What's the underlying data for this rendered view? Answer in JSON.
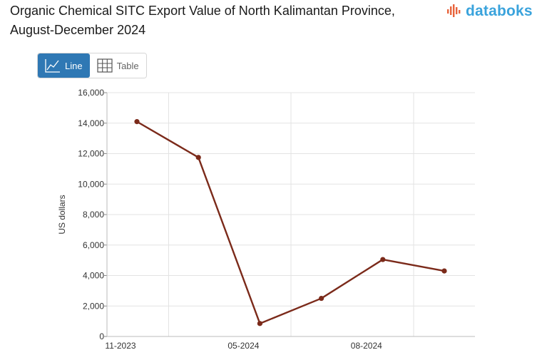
{
  "header": {
    "title": "Organic Chemical SITC Export Value of North Kalimantan Province, August-December 2024"
  },
  "brand": {
    "logo_text": "databoks",
    "logo_color": "#3aa3dc",
    "logo_icon": "databoks-bars-icon"
  },
  "view_toggle": {
    "line_label": "Line",
    "table_label": "Table",
    "active": "line",
    "line_icon": "line-chart-icon",
    "table_icon": "table-grid-icon"
  },
  "colors": {
    "series": "#7b2a1a",
    "accent": "#2f78b4",
    "grid": "#e3e3e3"
  },
  "chart_data": {
    "type": "line",
    "title": "Organic Chemical SITC Export Value of North Kalimantan Province, August-December 2024",
    "xlabel": "",
    "ylabel": "US dollars",
    "ylim": [
      0,
      16000
    ],
    "yticks": [
      0,
      2000,
      4000,
      6000,
      8000,
      10000,
      12000,
      14000,
      16000
    ],
    "ytick_labels": [
      "0",
      "2,000",
      "4,000",
      "6,000",
      "8,000",
      "10,000",
      "12,000",
      "14,000",
      "16,000"
    ],
    "x_tick_labels": [
      "11-2023",
      "05-2024",
      "08-2024"
    ],
    "x_tick_positions": [
      0,
      2,
      4
    ],
    "grid": true,
    "legend": "none",
    "series": [
      {
        "name": "Export value",
        "values": [
          14100,
          11750,
          850,
          2500,
          5050,
          4300
        ]
      }
    ]
  }
}
